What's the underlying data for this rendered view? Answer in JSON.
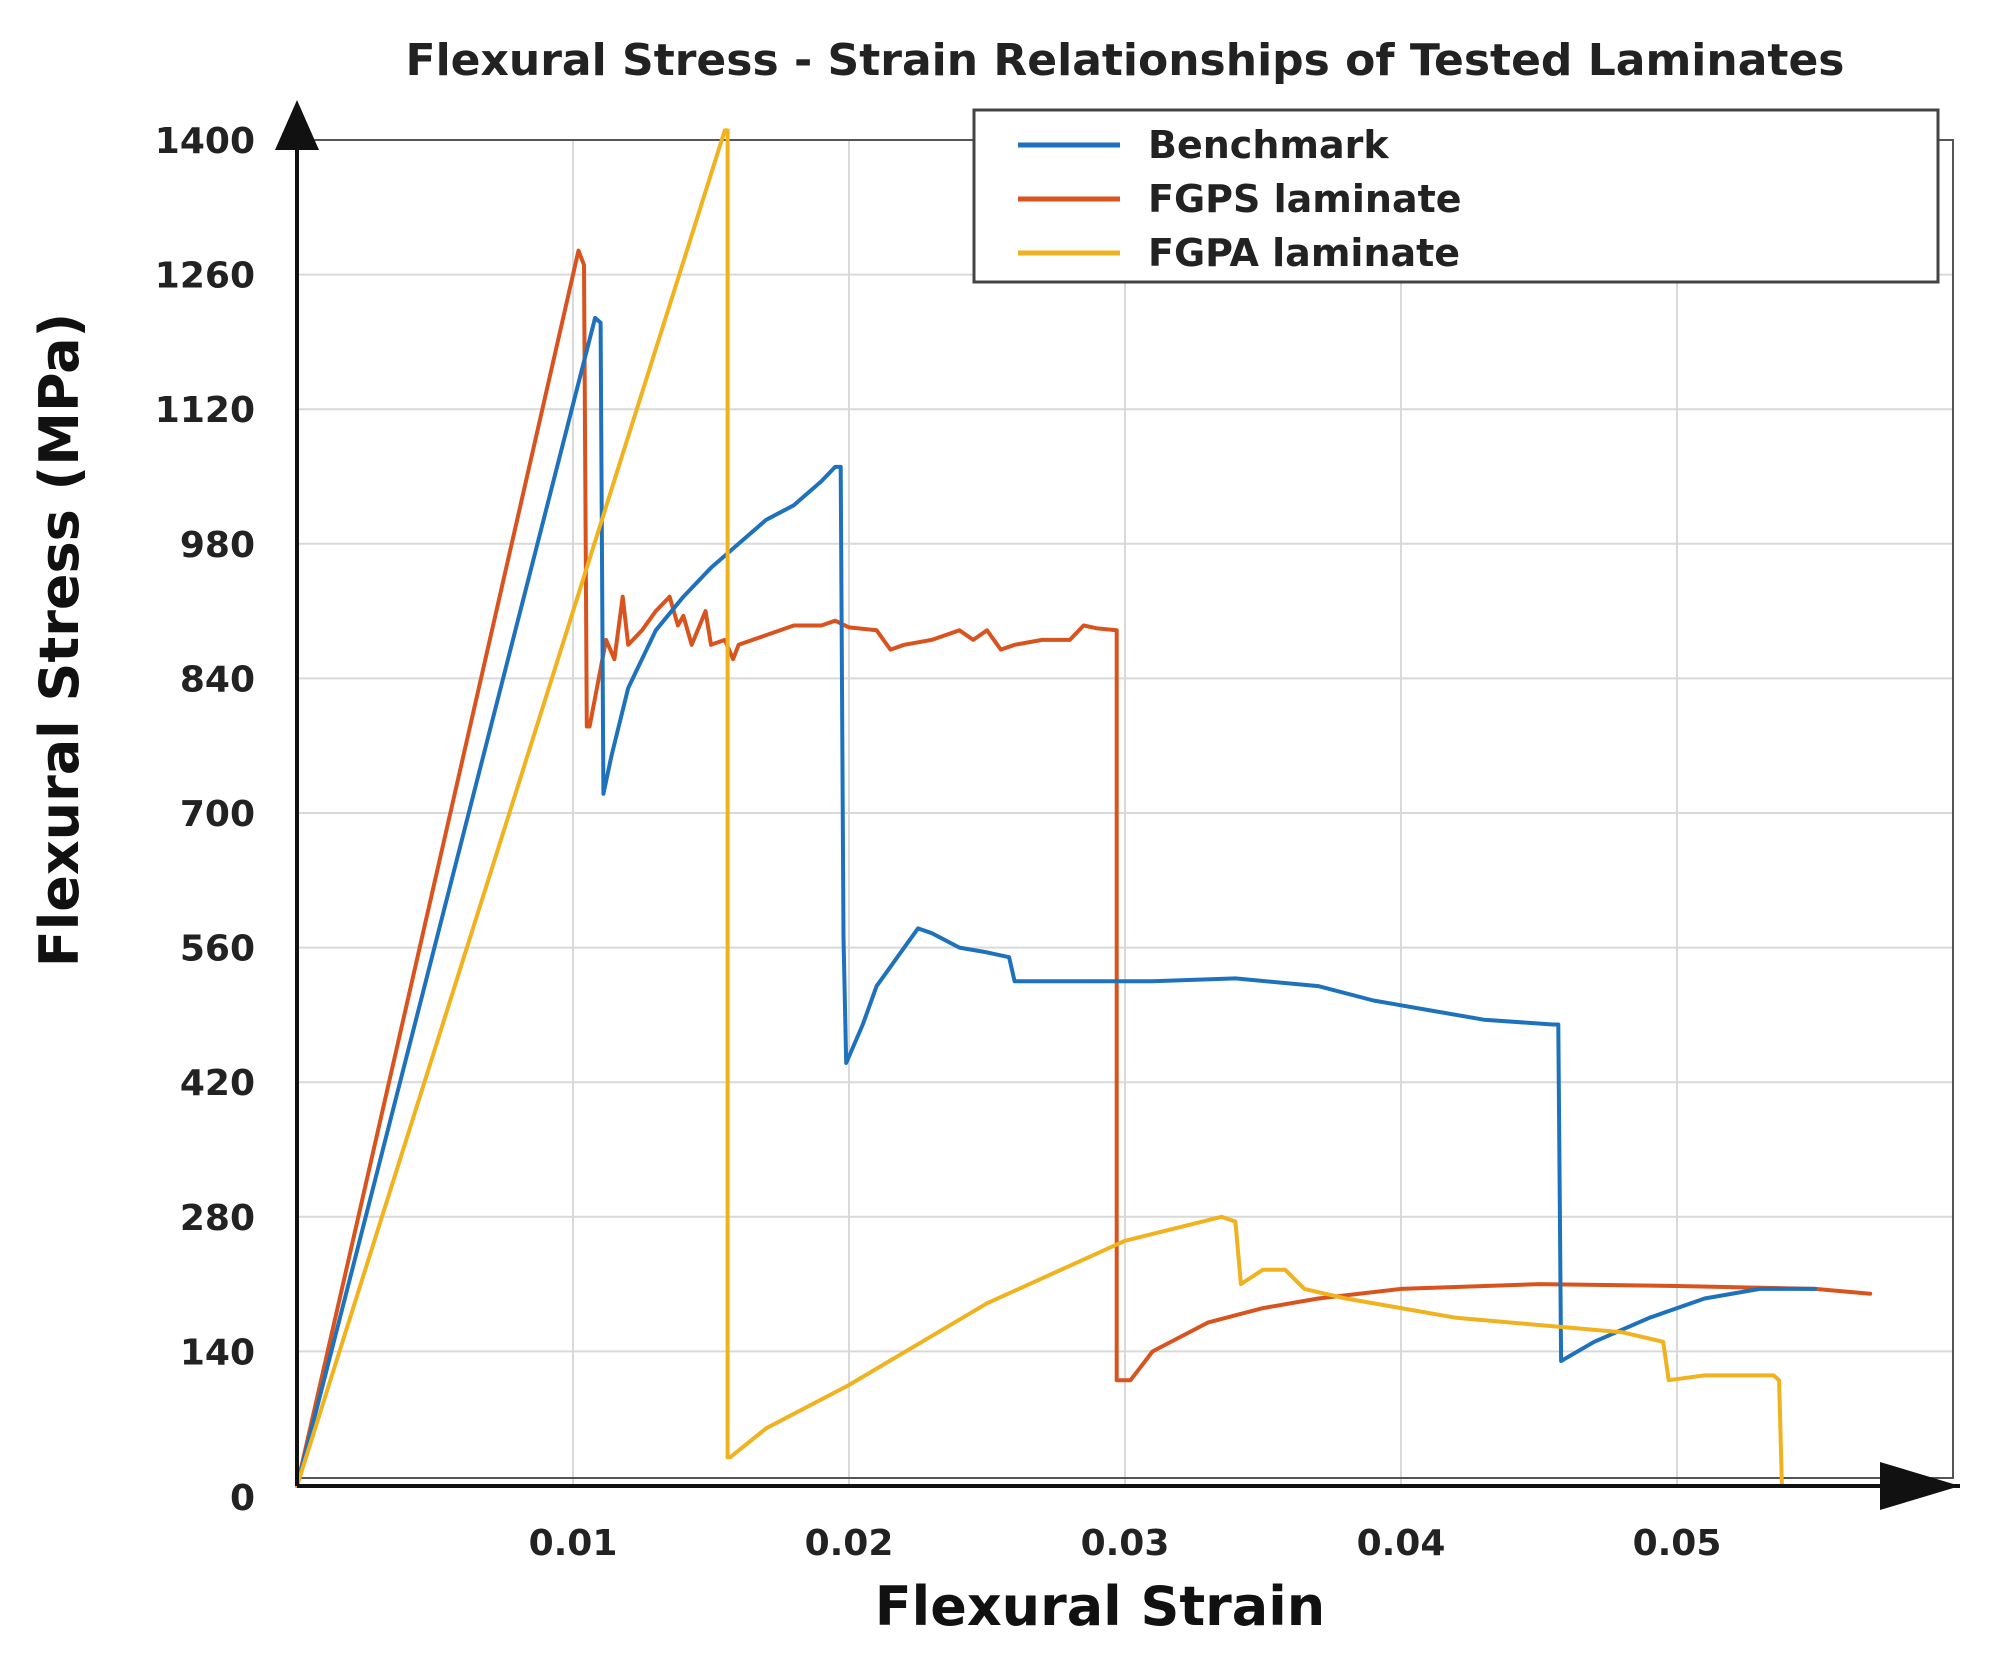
{
  "chart_data": {
    "type": "line",
    "title": "Flexural Stress - Strain Relationships of Tested Laminates",
    "xlabel": "Flexural Strain",
    "ylabel": "Flexural Stress (MPa)",
    "xlim": [
      0,
      0.06
    ],
    "ylim": [
      0,
      1400
    ],
    "xticks": [
      0.01,
      0.02,
      0.03,
      0.04,
      0.05
    ],
    "yticks": [
      0,
      140,
      280,
      420,
      560,
      700,
      840,
      980,
      1120,
      1260,
      1400
    ],
    "grid": true,
    "legend_position": "top-right",
    "series": [
      {
        "name": "FGPS laminate",
        "color": "#d9531e",
        "points": [
          [
            0,
            0
          ],
          [
            0.0102,
            1285
          ],
          [
            0.0104,
            1270
          ],
          [
            0.0105,
            790
          ],
          [
            0.0106,
            790
          ],
          [
            0.0112,
            880
          ],
          [
            0.0115,
            860
          ],
          [
            0.0118,
            925
          ],
          [
            0.012,
            875
          ],
          [
            0.0125,
            890
          ],
          [
            0.013,
            910
          ],
          [
            0.0135,
            925
          ],
          [
            0.0138,
            895
          ],
          [
            0.014,
            905
          ],
          [
            0.0143,
            875
          ],
          [
            0.0148,
            910
          ],
          [
            0.015,
            875
          ],
          [
            0.0155,
            880
          ],
          [
            0.0158,
            860
          ],
          [
            0.016,
            875
          ],
          [
            0.017,
            885
          ],
          [
            0.018,
            895
          ],
          [
            0.019,
            895
          ],
          [
            0.0195,
            900
          ],
          [
            0.02,
            893
          ],
          [
            0.021,
            890
          ],
          [
            0.0215,
            870
          ],
          [
            0.022,
            875
          ],
          [
            0.023,
            880
          ],
          [
            0.024,
            890
          ],
          [
            0.0245,
            880
          ],
          [
            0.025,
            890
          ],
          [
            0.0255,
            870
          ],
          [
            0.026,
            875
          ],
          [
            0.027,
            880
          ],
          [
            0.028,
            880
          ],
          [
            0.0285,
            895
          ],
          [
            0.029,
            892
          ],
          [
            0.0297,
            890
          ],
          [
            0.0297,
            110
          ],
          [
            0.0302,
            110
          ],
          [
            0.031,
            140
          ],
          [
            0.033,
            170
          ],
          [
            0.035,
            185
          ],
          [
            0.037,
            195
          ],
          [
            0.04,
            205
          ],
          [
            0.045,
            210
          ],
          [
            0.05,
            208
          ],
          [
            0.055,
            205
          ],
          [
            0.057,
            200
          ]
        ]
      },
      {
        "name": "Benchmark",
        "color": "#1e72bd",
        "points": [
          [
            0,
            0
          ],
          [
            0.0108,
            1215
          ],
          [
            0.011,
            1210
          ],
          [
            0.0111,
            720
          ],
          [
            0.0114,
            760
          ],
          [
            0.012,
            830
          ],
          [
            0.013,
            890
          ],
          [
            0.014,
            925
          ],
          [
            0.015,
            955
          ],
          [
            0.016,
            980
          ],
          [
            0.017,
            1005
          ],
          [
            0.018,
            1020
          ],
          [
            0.019,
            1045
          ],
          [
            0.0195,
            1060
          ],
          [
            0.0197,
            1060
          ],
          [
            0.0198,
            570
          ],
          [
            0.0199,
            440
          ],
          [
            0.0205,
            480
          ],
          [
            0.021,
            520
          ],
          [
            0.022,
            560
          ],
          [
            0.0225,
            580
          ],
          [
            0.023,
            575
          ],
          [
            0.024,
            560
          ],
          [
            0.025,
            555
          ],
          [
            0.0258,
            550
          ],
          [
            0.026,
            525
          ],
          [
            0.027,
            525
          ],
          [
            0.029,
            525
          ],
          [
            0.031,
            525
          ],
          [
            0.034,
            528
          ],
          [
            0.037,
            520
          ],
          [
            0.039,
            505
          ],
          [
            0.041,
            495
          ],
          [
            0.043,
            485
          ],
          [
            0.0455,
            480
          ],
          [
            0.0457,
            480
          ],
          [
            0.0458,
            130
          ],
          [
            0.047,
            150
          ],
          [
            0.049,
            175
          ],
          [
            0.051,
            195
          ],
          [
            0.053,
            205
          ],
          [
            0.055,
            205
          ]
        ]
      },
      {
        "name": "FGPA laminate",
        "color": "#f0b21e",
        "points": [
          [
            0,
            0
          ],
          [
            0.0155,
            1410
          ],
          [
            0.0156,
            1410
          ],
          [
            0.0156,
            30
          ],
          [
            0.0157,
            30
          ],
          [
            0.017,
            60
          ],
          [
            0.02,
            105
          ],
          [
            0.025,
            190
          ],
          [
            0.03,
            255
          ],
          [
            0.0335,
            280
          ],
          [
            0.034,
            275
          ],
          [
            0.0342,
            210
          ],
          [
            0.035,
            225
          ],
          [
            0.0358,
            225
          ],
          [
            0.0365,
            205
          ],
          [
            0.038,
            195
          ],
          [
            0.04,
            185
          ],
          [
            0.042,
            175
          ],
          [
            0.044,
            170
          ],
          [
            0.046,
            165
          ],
          [
            0.048,
            160
          ],
          [
            0.0495,
            150
          ],
          [
            0.0497,
            110
          ],
          [
            0.051,
            115
          ],
          [
            0.0535,
            115
          ],
          [
            0.0537,
            110
          ],
          [
            0.0538,
            0
          ],
          [
            0.0545,
            0
          ]
        ]
      }
    ],
    "legend_order": [
      "Benchmark",
      "FGPS laminate",
      "FGPA laminate"
    ]
  }
}
